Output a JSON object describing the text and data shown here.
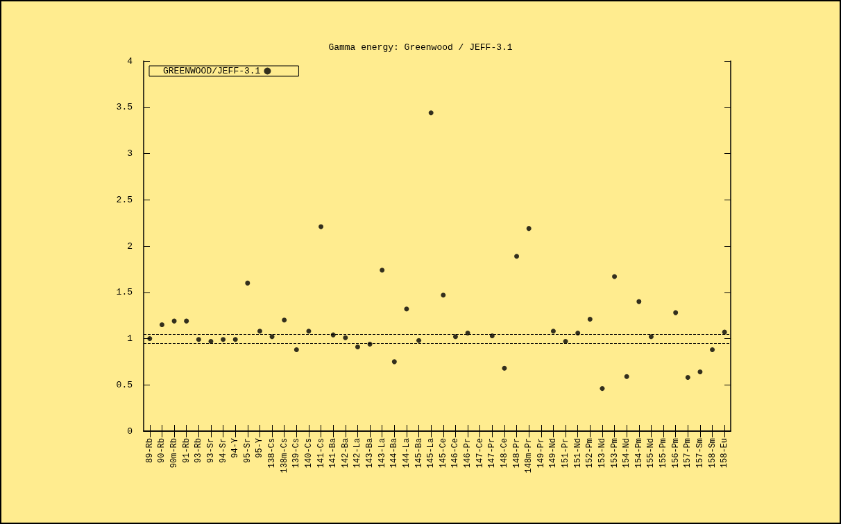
{
  "chart_data": {
    "type": "scatter",
    "title": "Gamma energy: Greenwood / JEFF-3.1",
    "categories": [
      "89-Rb",
      "90-Rb",
      "90m-Rb",
      "91-Rb",
      "93-Rb",
      "93-Sr",
      "94-Sr",
      "94-Y",
      "95-Sr",
      "95-Y",
      "138-Cs",
      "138m-Cs",
      "139-Cs",
      "140-Cs",
      "141-Cs",
      "141-Ba",
      "142-Ba",
      "142-La",
      "143-Ba",
      "143-La",
      "144-Ba",
      "144-La",
      "145-Ba",
      "145-La",
      "145-Ce",
      "146-Ce",
      "146-Pr",
      "147-Ce",
      "147-Pr",
      "148-Ce",
      "148-Pr",
      "148m-Pr",
      "149-Pr",
      "149-Nd",
      "151-Pr",
      "151-Nd",
      "152-Pm",
      "153-Nd",
      "153-Pm",
      "154-Nd",
      "154-Pm",
      "155-Nd",
      "155-Pm",
      "156-Pm",
      "157-Pm",
      "157-Sm",
      "158-Sm",
      "158-Eu"
    ],
    "series": [
      {
        "name": "GREENWOOD/JEFF-3.1",
        "color": "#000000",
        "values": [
          1.0,
          1.15,
          1.19,
          1.19,
          0.99,
          0.97,
          0.99,
          0.99,
          1.6,
          1.08,
          1.02,
          1.2,
          0.88,
          1.08,
          2.21,
          1.04,
          1.01,
          0.91,
          0.94,
          1.74,
          0.75,
          1.32,
          0.98,
          3.44,
          1.47,
          1.02,
          1.06,
          null,
          1.03,
          0.68,
          1.89,
          2.19,
          null,
          1.08,
          0.97,
          1.06,
          1.21,
          0.46,
          1.67,
          0.59,
          1.4,
          1.02,
          null,
          1.28,
          0.58,
          0.64,
          0.88,
          1.07
        ]
      }
    ],
    "ylim": [
      0,
      4
    ],
    "yticks": [
      0,
      0.5,
      1,
      1.5,
      2,
      2.5,
      3,
      3.5,
      4
    ],
    "ref_lines": [
      {
        "axis": "y",
        "value": 1.05,
        "color": "#000000",
        "line_style": "dashed"
      },
      {
        "axis": "y",
        "value": 0.95,
        "color": "#000000",
        "line_style": "dashed"
      }
    ],
    "marker": "circle",
    "legend": "top left",
    "grid": false
  }
}
